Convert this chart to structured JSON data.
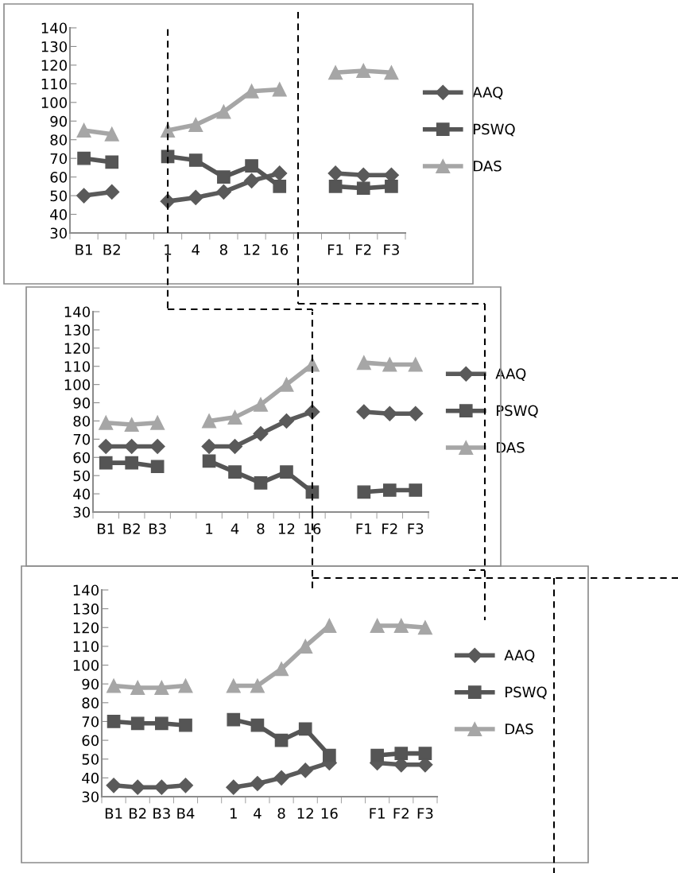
{
  "chart_data": [
    {
      "type": "line",
      "categories": [
        "B1",
        "B2",
        null,
        "1",
        "4",
        "8",
        "12",
        "16",
        null,
        "F1",
        "F2",
        "F3"
      ],
      "series": [
        {
          "name": "AAQ",
          "color": "#5a5a5a",
          "marker": "diamond",
          "values": [
            50,
            52,
            null,
            47,
            49,
            52,
            58,
            62,
            null,
            62,
            61,
            61
          ]
        },
        {
          "name": "PSWQ",
          "color": "#555555",
          "marker": "square",
          "values": [
            70,
            68,
            null,
            71,
            69,
            60,
            66,
            55,
            null,
            55,
            54,
            55
          ]
        },
        {
          "name": "DAS",
          "color": "#a6a6a6",
          "marker": "triangle",
          "values": [
            85,
            83,
            null,
            85,
            88,
            95,
            106,
            107,
            null,
            116,
            117,
            116
          ]
        }
      ],
      "ylim": [
        30,
        140
      ],
      "yticks": [
        30,
        40,
        50,
        60,
        70,
        80,
        90,
        100,
        110,
        120,
        130,
        140
      ],
      "grid": false,
      "legend": "right",
      "ref_lines": [
        {
          "axis": "x",
          "value": "1",
          "line_style": "dashed",
          "color": "#000000"
        }
      ]
    },
    {
      "type": "line",
      "categories": [
        "B1",
        "B2",
        "B3",
        null,
        "1",
        "4",
        "8",
        "12",
        "16",
        null,
        "F1",
        "F2",
        "F3"
      ],
      "series": [
        {
          "name": "AAQ",
          "color": "#5a5a5a",
          "marker": "diamond",
          "values": [
            66,
            66,
            66,
            null,
            66,
            66,
            73,
            80,
            85,
            null,
            85,
            84,
            84
          ]
        },
        {
          "name": "PSWQ",
          "color": "#555555",
          "marker": "square",
          "values": [
            57,
            57,
            55,
            null,
            58,
            52,
            46,
            52,
            41,
            null,
            41,
            42,
            42
          ]
        },
        {
          "name": "DAS",
          "color": "#a6a6a6",
          "marker": "triangle",
          "values": [
            79,
            78,
            79,
            null,
            80,
            82,
            89,
            100,
            111,
            null,
            112,
            111,
            111
          ]
        }
      ],
      "ylim": [
        30,
        140
      ],
      "yticks": [
        30,
        40,
        50,
        60,
        70,
        80,
        90,
        100,
        110,
        120,
        130,
        140
      ],
      "grid": false,
      "legend": "right",
      "ref_lines": [
        {
          "axis": "x",
          "value": "16",
          "line_style": "dashed",
          "color": "#000000"
        }
      ]
    },
    {
      "type": "line",
      "categories": [
        "B1",
        "B2",
        "B3",
        "B4",
        null,
        "1",
        "4",
        "8",
        "12",
        "16",
        null,
        "F1",
        "F2",
        "F3"
      ],
      "series": [
        {
          "name": "AAQ",
          "color": "#5a5a5a",
          "marker": "diamond",
          "values": [
            36,
            35,
            35,
            36,
            null,
            35,
            37,
            40,
            44,
            48,
            null,
            48,
            47,
            47
          ]
        },
        {
          "name": "PSWQ",
          "color": "#555555",
          "marker": "square",
          "values": [
            70,
            69,
            69,
            68,
            null,
            71,
            68,
            60,
            66,
            52,
            null,
            52,
            53,
            53
          ]
        },
        {
          "name": "DAS",
          "color": "#a6a6a6",
          "marker": "triangle",
          "values": [
            89,
            88,
            88,
            89,
            null,
            89,
            89,
            98,
            110,
            121,
            null,
            121,
            121,
            120
          ]
        }
      ],
      "ylim": [
        30,
        140
      ],
      "yticks": [
        30,
        40,
        50,
        60,
        70,
        80,
        90,
        100,
        110,
        120,
        130,
        140
      ],
      "grid": false,
      "legend": "right"
    }
  ]
}
